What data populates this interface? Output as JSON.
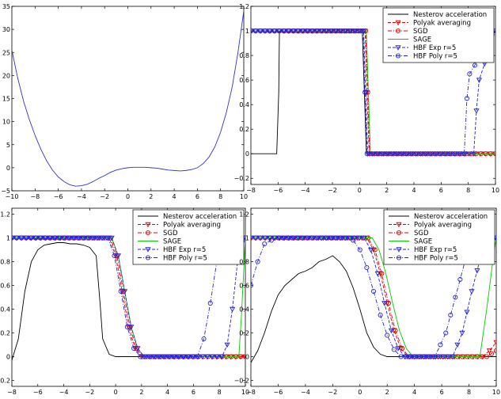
{
  "chart_data": [
    {
      "type": "line",
      "xlim": [
        -10,
        10
      ],
      "ylim": [
        -5,
        35
      ],
      "xticks": [
        "−10",
        "−8",
        "−6",
        "−4",
        "−2",
        "0",
        "2",
        "4",
        "6",
        "8",
        "10"
      ],
      "yticks": [
        "−5",
        "0",
        "5",
        "10",
        "15",
        "20",
        "25",
        "30",
        "35"
      ],
      "xtick_values": [
        -10,
        -8,
        -6,
        -4,
        -2,
        0,
        2,
        4,
        6,
        8,
        10
      ],
      "ytick_values": [
        -5,
        0,
        5,
        10,
        15,
        20,
        25,
        30,
        35
      ],
      "grid": false,
      "series": [
        {
          "color": "#3333cc",
          "style": "solid",
          "x": [
            -10,
            -9.5,
            -9,
            -8.5,
            -8,
            -7.5,
            -7,
            -6.5,
            -6,
            -5.5,
            -5,
            -4.5,
            -4,
            -3.5,
            -3,
            -2.5,
            -2,
            -1.5,
            -1,
            -0.5,
            0,
            0.5,
            1,
            1.5,
            2,
            2.5,
            3,
            3.5,
            4,
            4.5,
            5,
            5.5,
            6,
            6.5,
            7,
            7.5,
            8,
            8.5,
            9,
            9.5,
            10
          ],
          "y": [
            25.5,
            19.5,
            14.5,
            10.5,
            7,
            4,
            1.5,
            -0.5,
            -2,
            -3,
            -3.7,
            -4,
            -3.9,
            -3.6,
            -3,
            -2.3,
            -1.7,
            -1,
            -0.5,
            -0.2,
            0,
            0.1,
            0.1,
            0.1,
            0,
            -0.1,
            -0.3,
            -0.5,
            -0.6,
            -0.7,
            -0.6,
            -0.4,
            0,
            0.9,
            2.3,
            4.5,
            7.7,
            12,
            17.5,
            25,
            34
          ]
        }
      ]
    },
    {
      "type": "line",
      "xlim": [
        -8,
        10
      ],
      "ylim": [
        -0.25,
        1.2
      ],
      "xticks": [
        "−8",
        "−6",
        "−4",
        "−2",
        "0",
        "2",
        "4",
        "6",
        "8",
        "10"
      ],
      "yticks": [
        "−0.2",
        "0",
        "0.2",
        "0.4",
        "0.6",
        "0.8",
        "1",
        "1.2"
      ],
      "xtick_values": [
        -8,
        -6,
        -4,
        -2,
        0,
        2,
        4,
        6,
        8,
        10
      ],
      "ytick_values": [
        -0.2,
        0,
        0.2,
        0.4,
        0.6,
        0.8,
        1,
        1.2
      ],
      "grid": false,
      "legend": "top-right",
      "series": [
        {
          "name": "Nesterov acceleration",
          "color": "#000000",
          "style": "solid",
          "x": [
            -8,
            -6.1,
            -5.95,
            -5.9,
            0.2,
            0.35,
            0.5,
            10
          ],
          "y": [
            0,
            0,
            0.5,
            1,
            1,
            0.5,
            0,
            0
          ]
        },
        {
          "name": "Polyak averaging",
          "color": "#e00000",
          "style": "dashed",
          "marker": "triangle",
          "x": [
            -8,
            0.4,
            0.55,
            0.7,
            8.5,
            10
          ],
          "y": [
            1,
            1,
            0.5,
            0,
            0,
            0
          ]
        },
        {
          "name": "SGD",
          "color": "#e00000",
          "style": "dashdot",
          "marker": "circle",
          "x": [
            -8,
            0.45,
            0.6,
            0.75,
            10
          ],
          "y": [
            1,
            1,
            0.5,
            0,
            0
          ]
        },
        {
          "name": "SAGE",
          "color": "#00cc00",
          "style": "solid",
          "x": [
            -8,
            0.5,
            0.65,
            0.8,
            10
          ],
          "y": [
            1,
            1,
            0.5,
            0,
            0
          ]
        },
        {
          "name": "HBF Exp r=5",
          "color": "#2222dd",
          "style": "dashed",
          "marker": "triangle",
          "x": [
            -8,
            0.3,
            0.45,
            0.6,
            8.4,
            8.6,
            8.8,
            10
          ],
          "y": [
            1,
            1,
            0.5,
            0,
            0,
            0.35,
            0.6,
            1
          ]
        },
        {
          "name": "HBF Poly r=5",
          "color": "#2222dd",
          "style": "dashdot",
          "marker": "circle",
          "x": [
            -8,
            0.25,
            0.4,
            0.55,
            7.7,
            7.9,
            8.1,
            10
          ],
          "y": [
            1,
            1,
            0.5,
            0,
            0,
            0.45,
            0.65,
            1
          ]
        }
      ]
    },
    {
      "type": "line",
      "xlim": [
        -8,
        10
      ],
      "ylim": [
        -0.25,
        1.25
      ],
      "xticks": [
        "−8",
        "−6",
        "−4",
        "−2",
        "0",
        "2",
        "4",
        "6",
        "8",
        "10"
      ],
      "yticks": [
        "−0.2",
        "0",
        "0.2",
        "0.4",
        "0.6",
        "0.8",
        "1",
        "1.2"
      ],
      "xtick_values": [
        -8,
        -6,
        -4,
        -2,
        0,
        2,
        4,
        6,
        8,
        10
      ],
      "ytick_values": [
        -0.2,
        0,
        0.2,
        0.4,
        0.6,
        0.8,
        1,
        1.2
      ],
      "grid": false,
      "legend": "top-right",
      "series": [
        {
          "name": "Nesterov acceleration",
          "color": "#000000",
          "style": "solid",
          "x": [
            -8,
            -7.5,
            -7,
            -6.5,
            -6,
            -5.5,
            -5,
            -4.5,
            -4,
            -3.5,
            -3,
            -2.5,
            -2,
            -1.5,
            -1.2,
            -1,
            -0.5,
            0,
            10
          ],
          "y": [
            -0.03,
            0.15,
            0.55,
            0.8,
            0.9,
            0.94,
            0.95,
            0.96,
            0.96,
            0.95,
            0.95,
            0.94,
            0.92,
            0.85,
            0.45,
            0.15,
            0.02,
            0,
            0
          ]
        },
        {
          "name": "Polyak averaging",
          "color": "#e00000",
          "style": "dashed",
          "marker": "triangle",
          "x": [
            -8,
            -0.5,
            0,
            0.5,
            1,
            1.5,
            2,
            8.5,
            10
          ],
          "y": [
            1,
            1,
            0.85,
            0.55,
            0.25,
            0.07,
            0,
            0,
            0
          ]
        },
        {
          "name": "SGD",
          "color": "#e00000",
          "style": "dashdot",
          "marker": "circle",
          "x": [
            -8,
            -0.4,
            0.1,
            0.6,
            1.1,
            1.6,
            2.1,
            10
          ],
          "y": [
            1,
            1,
            0.85,
            0.55,
            0.25,
            0.07,
            0,
            0
          ]
        },
        {
          "name": "SAGE",
          "color": "#00cc00",
          "style": "solid",
          "x": [
            -8,
            -0.3,
            0.2,
            0.7,
            1.2,
            1.7,
            2.2,
            9.5,
            9.7,
            10
          ],
          "y": [
            1,
            1,
            0.85,
            0.55,
            0.25,
            0.07,
            0,
            0,
            0.35,
            1
          ]
        },
        {
          "name": "HBF Exp r=5",
          "color": "#2222dd",
          "style": "dashed",
          "marker": "triangle",
          "x": [
            -8,
            -0.3,
            0.2,
            0.7,
            1.2,
            1.7,
            2.2,
            8.2,
            8.6,
            9,
            9.4,
            10
          ],
          "y": [
            1,
            1,
            0.85,
            0.55,
            0.25,
            0.07,
            0,
            0,
            0.1,
            0.4,
            0.8,
            1
          ]
        },
        {
          "name": "HBF Poly r=5",
          "color": "#2222dd",
          "style": "dashdot",
          "marker": "circle",
          "x": [
            -8,
            -0.6,
            -0.1,
            0.4,
            0.9,
            1.4,
            1.9,
            6.3,
            6.8,
            7.3,
            7.8,
            8.5,
            10
          ],
          "y": [
            1,
            1,
            0.85,
            0.55,
            0.25,
            0.07,
            0,
            0,
            0.15,
            0.45,
            0.8,
            1,
            1
          ]
        }
      ]
    },
    {
      "type": "line",
      "xlim": [
        -8,
        10
      ],
      "ylim": [
        -0.25,
        1.25
      ],
      "xticks": [
        "−8",
        "−6",
        "−4",
        "−2",
        "0",
        "2",
        "4",
        "6",
        "8",
        "10"
      ],
      "yticks": [
        "−0.2",
        "0",
        "0.2",
        "0.4",
        "0.6",
        "0.8",
        "1",
        "1.2"
      ],
      "xtick_values": [
        -8,
        -6,
        -4,
        -2,
        0,
        2,
        4,
        6,
        8,
        10
      ],
      "ytick_values": [
        -0.2,
        0,
        0.2,
        0.4,
        0.6,
        0.8,
        1,
        1.2
      ],
      "grid": false,
      "legend": "top-right",
      "series": [
        {
          "name": "Nesterov acceleration",
          "color": "#000000",
          "style": "solid",
          "x": [
            -8,
            -7.5,
            -7,
            -6.5,
            -6,
            -5.5,
            -5,
            -4.5,
            -4,
            -3.5,
            -3,
            -2.5,
            -2,
            -1.5,
            -1,
            -0.5,
            0,
            0.5,
            1,
            1.5,
            2,
            10
          ],
          "y": [
            -0.05,
            0.05,
            0.2,
            0.38,
            0.52,
            0.6,
            0.65,
            0.7,
            0.72,
            0.75,
            0.8,
            0.82,
            0.85,
            0.8,
            0.72,
            0.58,
            0.4,
            0.2,
            0.08,
            0.02,
            0,
            0
          ]
        },
        {
          "name": "Polyak averaging",
          "color": "#e00000",
          "style": "dashed",
          "marker": "triangle",
          "x": [
            -8,
            0.5,
            1,
            1.5,
            2,
            2.5,
            3,
            3.5,
            9,
            9.5,
            10
          ],
          "y": [
            1,
            1,
            0.9,
            0.7,
            0.45,
            0.22,
            0.07,
            0,
            0,
            0.05,
            0.12
          ]
        },
        {
          "name": "SGD",
          "color": "#e00000",
          "style": "dashdot",
          "marker": "circle",
          "x": [
            -8,
            0.6,
            1.1,
            1.6,
            2.1,
            2.6,
            3.1,
            3.6,
            9.3,
            10
          ],
          "y": [
            1,
            1,
            0.9,
            0.7,
            0.45,
            0.22,
            0.07,
            0,
            0,
            0.05
          ]
        },
        {
          "name": "SAGE",
          "color": "#00cc00",
          "style": "solid",
          "x": [
            -8,
            0.9,
            1.4,
            1.9,
            2.4,
            2.9,
            3.4,
            3.9,
            8.8,
            9.3,
            9.8,
            10
          ],
          "y": [
            1,
            1,
            0.9,
            0.7,
            0.45,
            0.22,
            0.07,
            0,
            0,
            0.4,
            0.85,
            1
          ]
        },
        {
          "name": "HBF Exp r=5",
          "color": "#2222dd",
          "style": "dashed",
          "marker": "triangle",
          "x": [
            -8,
            0.3,
            0.8,
            1.3,
            1.8,
            2.3,
            2.8,
            3.3,
            6.8,
            7.5,
            8.2,
            9,
            10
          ],
          "y": [
            1,
            1,
            0.9,
            0.7,
            0.45,
            0.22,
            0.07,
            0,
            0,
            0.2,
            0.55,
            0.9,
            1
          ]
        },
        {
          "name": "HBF Poly r=5",
          "color": "#2222dd",
          "style": "dashdot",
          "marker": "circle",
          "x": [
            -8,
            -7.5,
            -7,
            -6.5,
            -6,
            -5,
            -1,
            -0.5,
            0,
            0.5,
            1,
            1.5,
            2,
            2.5,
            3,
            5.5,
            6.3,
            7,
            7.7,
            8.5,
            10
          ],
          "y": [
            0.6,
            0.8,
            0.95,
            0.98,
            1,
            1,
            1,
            0.98,
            0.9,
            0.75,
            0.55,
            0.35,
            0.18,
            0.06,
            0,
            0,
            0.2,
            0.5,
            0.8,
            1,
            1
          ]
        }
      ]
    }
  ]
}
